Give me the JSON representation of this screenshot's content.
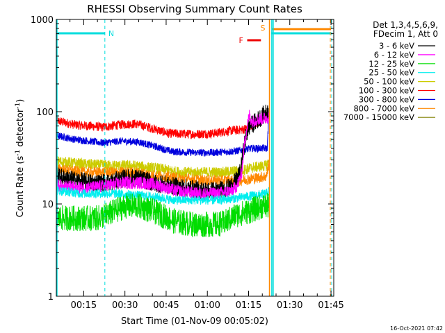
{
  "chart_data": {
    "type": "line",
    "title": "RHESSI Observing Summary Count Rates",
    "xlabel": "Start Time (01-Nov-09 00:05:02)",
    "ylabel_main": "Count Rate (s",
    "ylabel_sup1": "-1",
    "ylabel_mid": " detector",
    "ylabel_sup2": "-1",
    "ylabel_end": ")",
    "y_scale": "log",
    "ylim": [
      1,
      1000
    ],
    "xlim_minutes": [
      5.03,
      106.0
    ],
    "y_ticks": [
      {
        "value": 1,
        "label": "1"
      },
      {
        "value": 10,
        "label": "10"
      },
      {
        "value": 100,
        "label": "100"
      },
      {
        "value": 1000,
        "label": "1000"
      }
    ],
    "x_ticks": [
      {
        "minutes": 15,
        "label": "00:15"
      },
      {
        "minutes": 30,
        "label": "00:30"
      },
      {
        "minutes": 45,
        "label": "00:45"
      },
      {
        "minutes": 60,
        "label": "01:00"
      },
      {
        "minutes": 75,
        "label": "01:15"
      },
      {
        "minutes": 90,
        "label": "01:30"
      },
      {
        "minutes": 105,
        "label": "01:45"
      }
    ],
    "legend_header": [
      "Det 1,3,4,5,6,9,",
      "FDecim 1, Att 0"
    ],
    "legend": [
      {
        "label": "3 - 6 keV",
        "color": "#000000"
      },
      {
        "label": "6 - 12 keV",
        "color": "#ff00ff"
      },
      {
        "label": "12 - 25 keV",
        "color": "#00dd00"
      },
      {
        "label": "25 - 50 keV",
        "color": "#00eeee"
      },
      {
        "label": "50 - 100 keV",
        "color": "#cccc00"
      },
      {
        "label": "100 - 300 keV",
        "color": "#ff0000"
      },
      {
        "label": "300 - 800 keV",
        "color": "#0000dd"
      },
      {
        "label": "800 - 7000 keV",
        "color": "#ff8800"
      },
      {
        "label": "7000 - 15000 keV",
        "color": "#808000"
      }
    ],
    "series": [
      {
        "color": "#ff0000",
        "noise": 0.05,
        "points": [
          [
            5.1,
            80
          ],
          [
            12,
            72
          ],
          [
            22,
            68
          ],
          [
            28,
            72
          ],
          [
            34,
            74
          ],
          [
            40,
            66
          ],
          [
            46,
            58
          ],
          [
            55,
            57
          ],
          [
            62,
            58
          ],
          [
            68,
            62
          ],
          [
            73,
            64
          ],
          [
            76,
            70
          ],
          [
            80,
            82
          ],
          [
            82.5,
            95
          ]
        ]
      },
      {
        "color": "#0000dd",
        "noise": 0.04,
        "points": [
          [
            5.1,
            55
          ],
          [
            12,
            50
          ],
          [
            22,
            46
          ],
          [
            28,
            48
          ],
          [
            35,
            47
          ],
          [
            41,
            42
          ],
          [
            47,
            37
          ],
          [
            55,
            36
          ],
          [
            62,
            36
          ],
          [
            68,
            37
          ],
          [
            72,
            38
          ],
          [
            76,
            40
          ],
          [
            80,
            40
          ],
          [
            81.8,
            40
          ],
          [
            82.3,
            85
          ]
        ]
      },
      {
        "color": "#cccc00",
        "noise": 0.06,
        "points": [
          [
            5.1,
            29
          ],
          [
            15,
            27
          ],
          [
            25,
            26
          ],
          [
            33,
            26
          ],
          [
            43,
            24
          ],
          [
            50,
            22
          ],
          [
            58,
            22
          ],
          [
            66,
            22
          ],
          [
            72,
            23
          ],
          [
            77,
            25
          ],
          [
            81.5,
            26
          ],
          [
            82.5,
            30
          ]
        ]
      },
      {
        "color": "#ff8800",
        "noise": 0.06,
        "points": [
          [
            5.1,
            24
          ],
          [
            15,
            22
          ],
          [
            25,
            22
          ],
          [
            33,
            22
          ],
          [
            43,
            20
          ],
          [
            50,
            19
          ],
          [
            58,
            18
          ],
          [
            66,
            18
          ],
          [
            72,
            18
          ],
          [
            77,
            19
          ],
          [
            81.5,
            20
          ],
          [
            82.5,
            28
          ]
        ]
      },
      {
        "color": "#000000",
        "noise": 0.1,
        "points": [
          [
            5.1,
            20
          ],
          [
            12,
            18
          ],
          [
            18,
            17
          ],
          [
            24,
            17
          ],
          [
            30,
            19
          ],
          [
            35,
            19
          ],
          [
            40,
            17
          ],
          [
            45,
            16
          ],
          [
            52,
            15
          ],
          [
            58,
            14
          ],
          [
            64,
            14
          ],
          [
            68,
            15
          ],
          [
            70,
            17
          ],
          [
            72,
            22
          ],
          [
            73.5,
            45
          ],
          [
            75,
            68
          ],
          [
            78,
            80
          ],
          [
            81,
            95
          ],
          [
            82.5,
            102
          ]
        ]
      },
      {
        "color": "#ff00ff",
        "noise": 0.07,
        "points": [
          [
            5.1,
            16
          ],
          [
            12,
            15
          ],
          [
            18,
            15
          ],
          [
            24,
            16
          ],
          [
            30,
            17
          ],
          [
            36,
            17
          ],
          [
            42,
            16
          ],
          [
            48,
            14
          ],
          [
            56,
            13
          ],
          [
            64,
            13
          ],
          [
            69,
            14
          ],
          [
            71,
            16
          ],
          [
            72.5,
            22
          ],
          [
            73.5,
            45
          ],
          [
            74.5,
            70
          ],
          [
            75.3,
            92
          ],
          [
            76.2,
            78
          ],
          [
            78,
            82
          ],
          [
            80.5,
            84
          ],
          [
            82.5,
            88
          ]
        ]
      },
      {
        "color": "#00eeee",
        "noise": 0.05,
        "points": [
          [
            5.1,
            14
          ],
          [
            14,
            13
          ],
          [
            20,
            13
          ],
          [
            26,
            13
          ],
          [
            33,
            12.5
          ],
          [
            40,
            12
          ],
          [
            48,
            11
          ],
          [
            56,
            11
          ],
          [
            64,
            11
          ],
          [
            70,
            11.5
          ],
          [
            74,
            12
          ],
          [
            78,
            12.5
          ],
          [
            81.5,
            13
          ],
          [
            82.5,
            14
          ]
        ]
      },
      {
        "color": "#00dd00",
        "noise": 0.14,
        "points": [
          [
            5.1,
            7
          ],
          [
            12,
            7
          ],
          [
            20,
            7
          ],
          [
            25,
            8
          ],
          [
            30,
            9.5
          ],
          [
            35,
            9.5
          ],
          [
            42,
            8
          ],
          [
            48,
            6.5
          ],
          [
            55,
            6
          ],
          [
            62,
            6
          ],
          [
            66,
            6.2
          ],
          [
            70,
            7.5
          ],
          [
            76,
            8.5
          ],
          [
            80,
            9.5
          ],
          [
            82.5,
            9.5
          ]
        ]
      }
    ],
    "flags": {
      "N_label": "N",
      "F_label": "F",
      "S_label": "S",
      "night_until_minutes": 22.7,
      "night_resume_minutes": 83.2,
      "saa_start_minutes": 82.6,
      "saa_end_minutes": 105.0,
      "flare_start_minutes": 74.5,
      "flare_end_minutes": 79.5
    },
    "colors": {
      "night": "#00dddd",
      "flare": "#ee0000",
      "saa": "#ff8800"
    }
  },
  "footer": {
    "timestamp": "16-Oct-2021 07:42"
  }
}
